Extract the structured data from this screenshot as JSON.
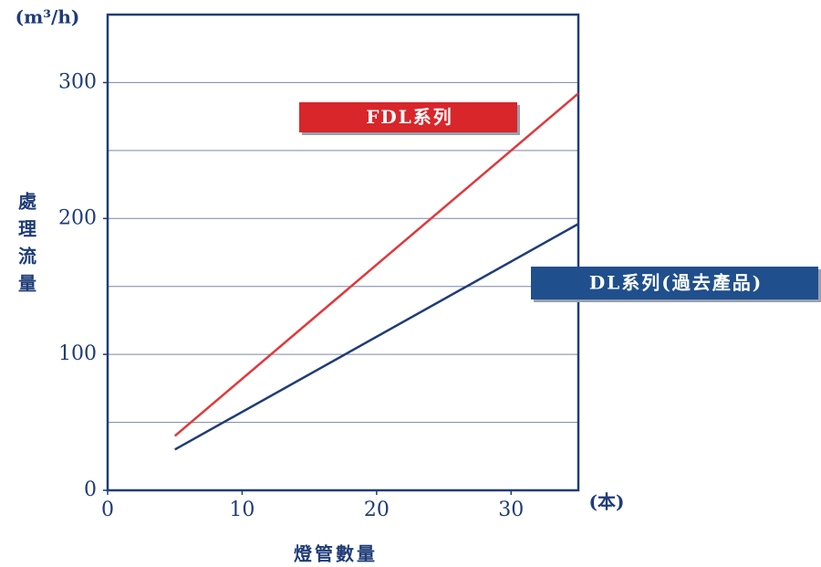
{
  "chart_data": {
    "type": "line",
    "y_unit": "(m³/h)",
    "y_label": "處理流量",
    "x_label": "燈管數量",
    "x_unit": "(本)",
    "x": [
      5,
      35
    ],
    "series": [
      {
        "name": "FDL系列",
        "color": "#e2373a",
        "label_color": "#d8262b",
        "values": [
          40,
          292
        ]
      },
      {
        "name": "DL系列(過去產品)",
        "color": "#1f3c78",
        "label_color": "#1f4f8c",
        "values": [
          30,
          196
        ]
      }
    ],
    "xlim": [
      0,
      35
    ],
    "xticks": [
      0,
      10,
      20,
      30
    ],
    "ylim": [
      0,
      350
    ],
    "yticks": [
      0,
      100,
      200,
      300
    ],
    "grid_lines": [
      50,
      100,
      150,
      200,
      250,
      300
    ],
    "grid": true
  }
}
